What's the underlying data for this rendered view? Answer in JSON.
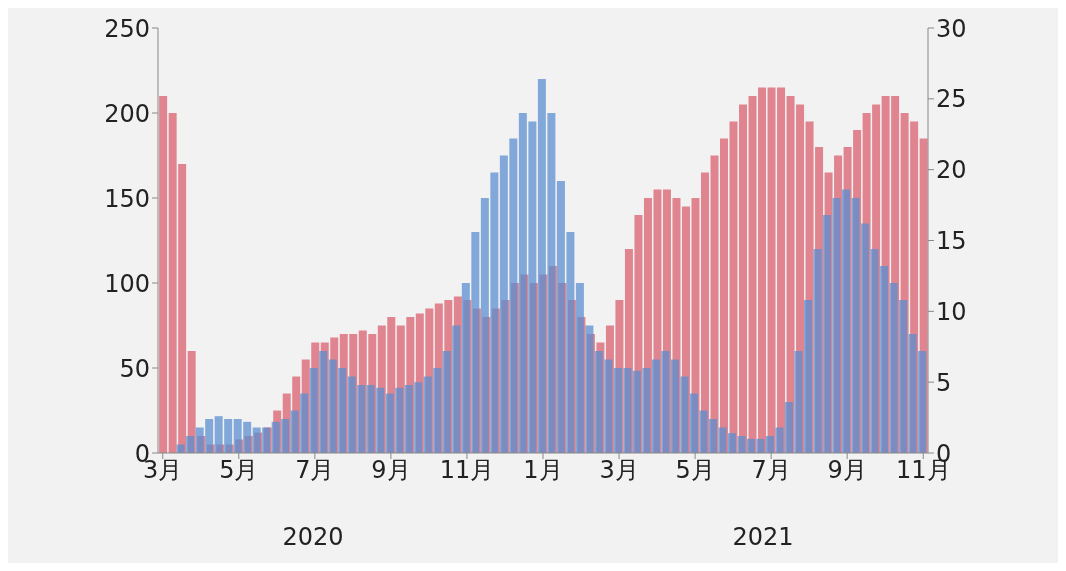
{
  "chart_data": {
    "type": "bar",
    "categories": [
      "3月",
      null,
      null,
      null,
      null,
      null,
      null,
      null,
      "5月",
      null,
      null,
      null,
      null,
      null,
      null,
      null,
      "7月",
      null,
      null,
      null,
      null,
      null,
      null,
      null,
      "9月",
      null,
      null,
      null,
      null,
      null,
      null,
      null,
      "11月",
      null,
      null,
      null,
      null,
      null,
      null,
      null,
      "1月",
      null,
      null,
      null,
      null,
      null,
      null,
      null,
      "3月",
      null,
      null,
      null,
      null,
      null,
      null,
      null,
      "5月",
      null,
      null,
      null,
      null,
      null,
      null,
      null,
      "7月",
      null,
      null,
      null,
      null,
      null,
      null,
      null,
      "9月",
      null,
      null,
      null,
      null,
      null,
      null,
      null,
      "11月"
    ],
    "series": [
      {
        "color": "#d9606e",
        "values": [
          210,
          200,
          170,
          60,
          10,
          5,
          5,
          5,
          8,
          10,
          12,
          15,
          25,
          35,
          45,
          55,
          65,
          65,
          68,
          70,
          70,
          72,
          70,
          75,
          80,
          75,
          80,
          82,
          85,
          88,
          90,
          92,
          90,
          85,
          80,
          85,
          90,
          100,
          105,
          100,
          105,
          110,
          100,
          90,
          80,
          70,
          65,
          75,
          90,
          120,
          140,
          150,
          155,
          155,
          150,
          145,
          150,
          165,
          175,
          185,
          195,
          205,
          210,
          215,
          215,
          215,
          210,
          205,
          195,
          180,
          165,
          175,
          180,
          190,
          200,
          205,
          210,
          210,
          200,
          195,
          185
        ]
      },
      {
        "color": "#5b8fd0",
        "axis": "y2",
        "values": [
          0,
          0,
          0.6,
          1.2,
          1.8,
          2.4,
          2.6,
          2.4,
          2.4,
          2.2,
          1.8,
          1.8,
          2.2,
          2.4,
          3,
          4.2,
          6,
          7.2,
          6.6,
          6,
          5.4,
          4.8,
          4.8,
          4.6,
          4.2,
          4.6,
          4.8,
          5,
          5.4,
          6,
          7.2,
          9,
          12,
          15.6,
          18,
          19.8,
          21,
          22.2,
          24,
          23.4,
          26.4,
          24,
          19.2,
          15.6,
          12,
          9,
          7.2,
          6.6,
          6,
          6,
          5.8,
          6,
          6.6,
          7.2,
          6.6,
          5.4,
          4.2,
          3,
          2.4,
          1.8,
          1.4,
          1.2,
          1,
          1,
          1.2,
          1.8,
          3.6,
          7.2,
          10.8,
          14.4,
          16.8,
          18,
          18.6,
          18,
          16.2,
          14.4,
          13.2,
          12,
          10.8,
          8.4,
          7.2
        ]
      }
    ],
    "ylim": [
      0,
      250
    ],
    "yticks": [
      0,
      50,
      100,
      150,
      200,
      250
    ],
    "y2lim": [
      0,
      30
    ],
    "y2ticks": [
      0,
      5,
      10,
      15,
      20,
      25,
      30
    ],
    "annotations": [
      "2020",
      "2021"
    ]
  }
}
